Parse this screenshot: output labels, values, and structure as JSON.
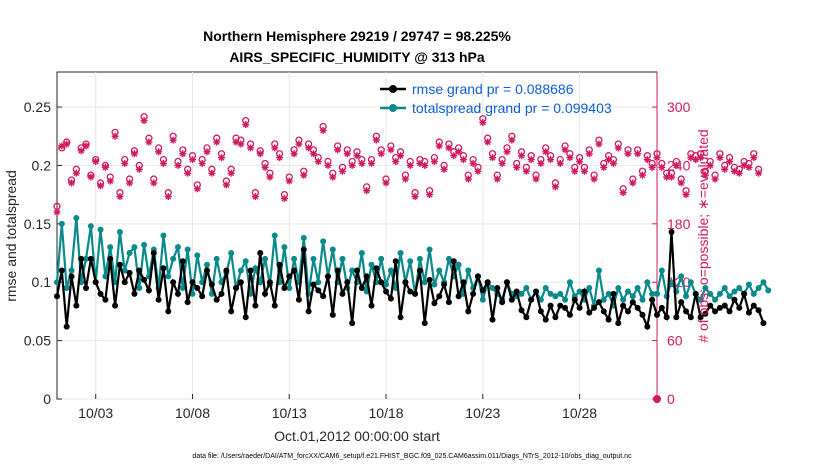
{
  "chart_data": {
    "type": "line",
    "title": "Northern Hemisphere 29219 / 29747 = 98.225%",
    "subtitle": "AIRS_SPECIFIC_HUMIDITY @ 313 hPa",
    "xlabel": "Oct.01,2012 00:00:00 start",
    "ylabel": "rmse and totalspread",
    "ylabel_right": "# of obs: o=possible; ∗=evaluated",
    "footnote": "data file: /Users/raeder/DAI/ATM_forcXX/CAM6_setup/f.e21.FHIST_BGC.f09_025.CAM6assim.011/Diags_NTrS_2012-10/obs_diag_output.nc",
    "xlim": [
      1.0,
      32.0
    ],
    "ylim": [
      0,
      0.28
    ],
    "ylim_right": [
      0,
      336
    ],
    "x_ticks": [
      3,
      8,
      13,
      18,
      23,
      28
    ],
    "x_tick_labels": [
      "10/03",
      "10/08",
      "10/13",
      "10/18",
      "10/23",
      "10/28"
    ],
    "y_ticks": [
      0,
      0.05,
      0.1,
      0.15,
      0.2,
      0.25
    ],
    "y_tick_labels": [
      "0",
      "0.05",
      "0.1",
      "0.15",
      "0.2",
      "0.25"
    ],
    "y_right_ticks": [
      0,
      60,
      120,
      180,
      240,
      300
    ],
    "y_right_tick_labels": [
      "0",
      "60",
      "120",
      "180",
      "240",
      "300"
    ],
    "grid": true,
    "legend_position": "top-right",
    "colors": {
      "rmse": "#000000",
      "spread": "#0a8a8a",
      "obs": "#d11a5e",
      "legend_text": "#0b5ed7"
    },
    "series": [
      {
        "name": "rmse grand pr = 0.088686",
        "axis": "left",
        "values": [
          0.088,
          0.11,
          0.062,
          0.105,
          0.08,
          0.12,
          0.095,
          0.12,
          0.1,
          0.09,
          0.085,
          0.12,
          0.08,
          0.115,
          0.1,
          0.108,
          0.09,
          0.11,
          0.102,
          0.093,
          0.125,
          0.085,
          0.112,
          0.075,
          0.1,
          0.09,
          0.118,
          0.083,
          0.1,
          0.095,
          0.088,
          0.11,
          0.098,
          0.085,
          0.09,
          0.11,
          0.075,
          0.095,
          0.1,
          0.07,
          0.11,
          0.08,
          0.125,
          0.09,
          0.1,
          0.08,
          0.115,
          0.095,
          0.105,
          0.11,
          0.085,
          0.128,
          0.075,
          0.098,
          0.093,
          0.088,
          0.105,
          0.072,
          0.11,
          0.09,
          0.1,
          0.065,
          0.11,
          0.095,
          0.105,
          0.08,
          0.112,
          0.1,
          0.092,
          0.086,
          0.118,
          0.07,
          0.1,
          0.092,
          0.09,
          0.11,
          0.065,
          0.102,
          0.082,
          0.088,
          0.098,
          0.083,
          0.118,
          0.088,
          0.1,
          0.075,
          0.09,
          0.105,
          0.093,
          0.1,
          0.068,
          0.095,
          0.083,
          0.1,
          0.085,
          0.092,
          0.076,
          0.07,
          0.085,
          0.092,
          0.075,
          0.068,
          0.08,
          0.07,
          0.08,
          0.078,
          0.072,
          0.085,
          0.078,
          0.092,
          0.074,
          0.078,
          0.083,
          0.075,
          0.068,
          0.09,
          0.065,
          0.08,
          0.075,
          0.083,
          0.078,
          0.072,
          0.062,
          0.085,
          0.072,
          0.078,
          0.07,
          0.143,
          0.07,
          0.083,
          0.075,
          0.07,
          0.09,
          0.07,
          0.073,
          0.08,
          0.075,
          0.078,
          0.08,
          0.075,
          0.085,
          0.078,
          0.09,
          0.074,
          0.08,
          0.076,
          0.065
        ],
        "x_start": 1.0,
        "x_step": 0.25
      },
      {
        "name": "totalspread grand pr = 0.099403",
        "axis": "left",
        "values": [
          0.1,
          0.15,
          0.095,
          0.11,
          0.155,
          0.1,
          0.12,
          0.148,
          0.1,
          0.145,
          0.105,
          0.13,
          0.1,
          0.143,
          0.11,
          0.125,
          0.13,
          0.095,
          0.132,
          0.105,
          0.128,
          0.095,
          0.14,
          0.105,
          0.12,
          0.13,
          0.095,
          0.128,
          0.09,
          0.123,
          0.1,
          0.115,
          0.09,
          0.12,
          0.1,
          0.108,
          0.125,
          0.095,
          0.11,
          0.118,
          0.09,
          0.112,
          0.1,
          0.12,
          0.098,
          0.14,
          0.1,
          0.13,
          0.095,
          0.12,
          0.1,
          0.138,
          0.09,
          0.12,
          0.1,
          0.135,
          0.105,
          0.128,
          0.1,
          0.12,
          0.095,
          0.11,
          0.1,
          0.125,
          0.092,
          0.115,
          0.1,
          0.12,
          0.098,
          0.11,
          0.095,
          0.125,
          0.1,
          0.118,
          0.09,
          0.12,
          0.1,
          0.128,
          0.098,
          0.11,
          0.1,
          0.12,
          0.105,
          0.115,
          0.09,
          0.11,
          0.095,
          0.105,
          0.085,
          0.1,
          0.095,
          0.09,
          0.085,
          0.1,
          0.09,
          0.088,
          0.09,
          0.095,
          0.085,
          0.092,
          0.085,
          0.095,
          0.09,
          0.088,
          0.09,
          0.085,
          0.1,
          0.088,
          0.092,
          0.085,
          0.095,
          0.08,
          0.11,
          0.085,
          0.09,
          0.08,
          0.095,
          0.085,
          0.092,
          0.088,
          0.095,
          0.085,
          0.1,
          0.09,
          0.09,
          0.11,
          0.088,
          0.1,
          0.092,
          0.105,
          0.088,
          0.1,
          0.09,
          0.085,
          0.095,
          0.09,
          0.085,
          0.09,
          0.095,
          0.088,
          0.092,
          0.095,
          0.09,
          0.098,
          0.09,
          0.095,
          0.1,
          0.093
        ],
        "x_start": 1.0,
        "x_step": 0.25
      },
      {
        "name": "obs possible",
        "axis": "right",
        "marker": "o",
        "values": [
          198,
          258,
          264,
          225,
          236,
          258,
          262,
          230,
          246,
          222,
          240,
          228,
          274,
          212,
          246,
          226,
          255,
          240,
          290,
          268,
          226,
          258,
          246,
          212,
          270,
          244,
          256,
          236,
          250,
          220,
          246,
          258,
          236,
          268,
          252,
          224,
          236,
          268,
          266,
          286,
          262,
          212,
          255,
          242,
          232,
          262,
          252,
          210,
          228,
          256,
          266,
          234,
          262,
          256,
          248,
          280,
          244,
          232,
          260,
          238,
          256,
          244,
          254,
          246,
          218,
          246,
          270,
          256,
          226,
          260,
          248,
          254,
          230,
          244,
          212,
          246,
          244,
          214,
          248,
          264,
          240,
          262,
          254,
          258,
          250,
          230,
          246,
          238,
          288,
          268,
          252,
          230,
          246,
          258,
          270,
          242,
          254,
          238,
          250,
          230,
          246,
          258,
          250,
          222,
          246,
          260,
          252,
          238,
          248,
          238,
          256,
          230,
          266,
          242,
          250,
          246,
          262,
          216,
          256,
          226,
          256,
          234,
          250,
          242,
          252,
          242,
          232,
          232,
          244,
          226,
          214,
          252,
          250,
          252,
          234,
          244,
          230,
          252,
          240,
          248,
          238,
          236,
          244,
          242,
          252,
          236
        ],
        "x_start": 1.0,
        "x_step": 0.25
      },
      {
        "name": "obs evaluated",
        "axis": "right",
        "marker": "*",
        "values": [
          192,
          260,
          262,
          222,
          232,
          255,
          260,
          228,
          244,
          219,
          238,
          224,
          270,
          208,
          242,
          222,
          252,
          236,
          286,
          264,
          222,
          254,
          242,
          208,
          266,
          240,
          252,
          232,
          246,
          216,
          242,
          254,
          232,
          264,
          248,
          220,
          232,
          264,
          262,
          282,
          258,
          208,
          252,
          238,
          228,
          258,
          248,
          206,
          224,
          252,
          262,
          230,
          258,
          252,
          244,
          276,
          240,
          228,
          256,
          234,
          252,
          240,
          250,
          242,
          214,
          242,
          266,
          252,
          222,
          256,
          244,
          250,
          226,
          240,
          208,
          242,
          240,
          210,
          244,
          260,
          236,
          258,
          250,
          254,
          246,
          226,
          242,
          234,
          284,
          264,
          248,
          226,
          242,
          254,
          266,
          238,
          250,
          234,
          246,
          226,
          242,
          254,
          246,
          218,
          242,
          256,
          248,
          234,
          244,
          234,
          252,
          226,
          262,
          238,
          246,
          242,
          258,
          212,
          252,
          222,
          252,
          230,
          246,
          238,
          248,
          238,
          228,
          228,
          240,
          222,
          210,
          248,
          246,
          248,
          230,
          240,
          226,
          248,
          236,
          244,
          234,
          232,
          240,
          238,
          248,
          232
        ],
        "x_start": 1.0,
        "x_step": 0.25
      }
    ]
  }
}
